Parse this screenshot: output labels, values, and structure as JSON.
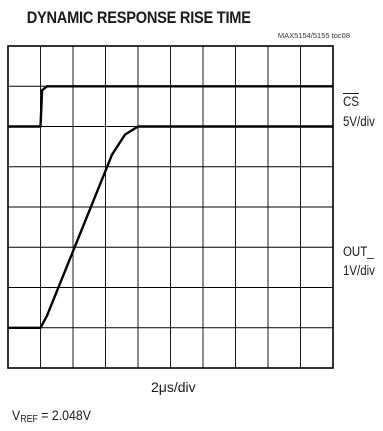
{
  "chart_data": {
    "type": "line",
    "title": "DYNAMIC RESPONSE RISE TIME",
    "figure_ref": "MAX5154/5155 toc08",
    "x_scale": "2μs/div",
    "x_divisions": 10,
    "y_divisions": 8,
    "grid": true,
    "condition": {
      "label_main": "V",
      "label_sub": "REF",
      "value": " = 2.048V"
    },
    "series": [
      {
        "name": "CS",
        "scale": "5V/div",
        "color": "#000000",
        "x": [
          0,
          1,
          1.05,
          1.2,
          10
        ],
        "y": [
          6,
          6,
          6.9,
          7,
          7
        ]
      },
      {
        "name": "OUT_",
        "scale": "1V/div",
        "color": "#000000",
        "x": [
          0,
          1.0,
          1.2,
          3.2,
          3.6,
          4.0,
          10
        ],
        "y": [
          1,
          1,
          1.3,
          5.3,
          5.8,
          6.0,
          6.0
        ]
      }
    ]
  }
}
